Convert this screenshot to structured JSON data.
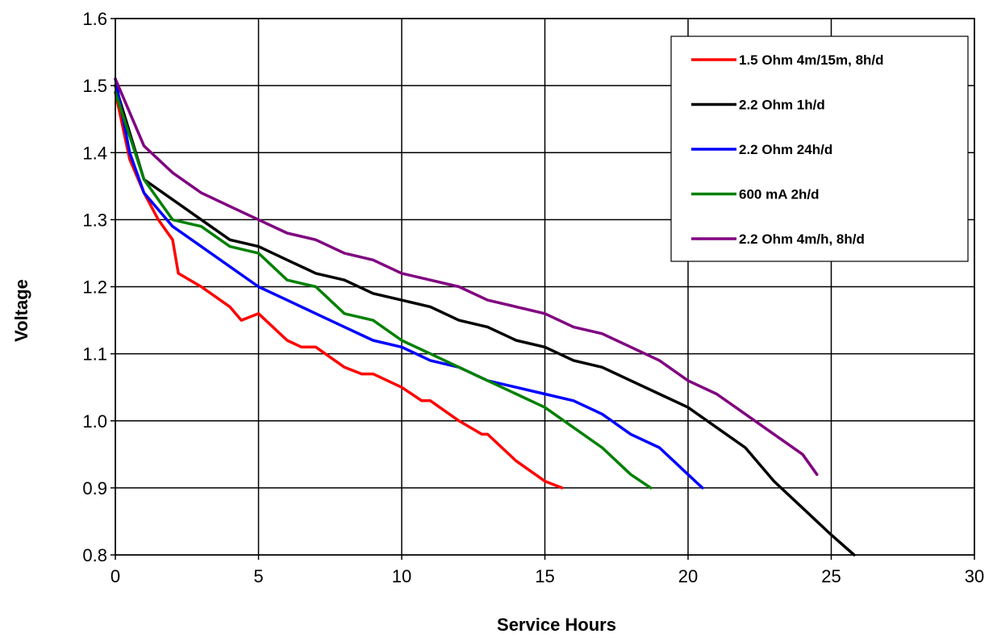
{
  "chart_data": {
    "type": "line",
    "title": "",
    "xlabel": "Service Hours",
    "ylabel": "Voltage",
    "xlim": [
      0,
      30
    ],
    "ylim": [
      0.8,
      1.6
    ],
    "x_ticks": [
      0,
      5,
      10,
      15,
      20,
      25,
      30
    ],
    "y_ticks": [
      0.8,
      0.9,
      1.0,
      1.1,
      1.2,
      1.3,
      1.4,
      1.5,
      1.6
    ],
    "x_tick_labels": [
      "0",
      "5",
      "10",
      "15",
      "20",
      "25",
      "30"
    ],
    "y_tick_labels": [
      "0.8",
      "0.9",
      "1.0",
      "1.1",
      "1.2",
      "1.3",
      "1.4",
      "1.5",
      "1.6"
    ],
    "grid": true,
    "legend_position": "top-right",
    "series": [
      {
        "name": "1.5 Ohm 4m/15m, 8h/d",
        "color": "#ff0000",
        "x": [
          0,
          0.5,
          1,
          1.5,
          2,
          2.2,
          3,
          4,
          4.4,
          5,
          6,
          6.5,
          7,
          8,
          8.6,
          9,
          10,
          10.7,
          11,
          12,
          12.8,
          13,
          14,
          15,
          15.6
        ],
        "y": [
          1.49,
          1.39,
          1.34,
          1.3,
          1.27,
          1.22,
          1.2,
          1.17,
          1.15,
          1.16,
          1.12,
          1.11,
          1.11,
          1.08,
          1.07,
          1.07,
          1.05,
          1.03,
          1.03,
          1.0,
          0.98,
          0.98,
          0.94,
          0.91,
          0.9
        ]
      },
      {
        "name": "2.2 Ohm 1h/d",
        "color": "#000000",
        "x": [
          0,
          1,
          2,
          3,
          4,
          5,
          6,
          7,
          8,
          9,
          10,
          11,
          12,
          13,
          14,
          15,
          16,
          17,
          18,
          19,
          20,
          21,
          22,
          23,
          24,
          25,
          25.8
        ],
        "y": [
          1.5,
          1.36,
          1.33,
          1.3,
          1.27,
          1.26,
          1.24,
          1.22,
          1.21,
          1.19,
          1.18,
          1.17,
          1.15,
          1.14,
          1.12,
          1.11,
          1.09,
          1.08,
          1.06,
          1.04,
          1.02,
          0.99,
          0.96,
          0.91,
          0.87,
          0.83,
          0.8
        ]
      },
      {
        "name": "2.2 Ohm 24h/d",
        "color": "#0000ff",
        "x": [
          0,
          0.5,
          1,
          2,
          3,
          4,
          5,
          6,
          7,
          8,
          9,
          10,
          11,
          12,
          13,
          14,
          15,
          16,
          17,
          18,
          19,
          20,
          20.5
        ],
        "y": [
          1.51,
          1.4,
          1.34,
          1.29,
          1.26,
          1.23,
          1.2,
          1.18,
          1.16,
          1.14,
          1.12,
          1.11,
          1.09,
          1.08,
          1.06,
          1.05,
          1.04,
          1.03,
          1.01,
          0.98,
          0.96,
          0.92,
          0.9
        ]
      },
      {
        "name": "600 mA 2h/d",
        "color": "#008000",
        "x": [
          0,
          1,
          2,
          3,
          4,
          5,
          6,
          7,
          8,
          9,
          10,
          11,
          12,
          13,
          14,
          15,
          16,
          17,
          18,
          18.7
        ],
        "y": [
          1.49,
          1.36,
          1.3,
          1.29,
          1.26,
          1.25,
          1.21,
          1.2,
          1.16,
          1.15,
          1.12,
          1.1,
          1.08,
          1.06,
          1.04,
          1.02,
          0.99,
          0.96,
          0.92,
          0.9
        ]
      },
      {
        "name": "2.2 Ohm 4m/h, 8h/d",
        "color": "#800080",
        "x": [
          0,
          1,
          2,
          3,
          4,
          5,
          6,
          7,
          8,
          9,
          10,
          11,
          12,
          13,
          14,
          15,
          16,
          17,
          18,
          19,
          20,
          21,
          22,
          23,
          24,
          24.5
        ],
        "y": [
          1.51,
          1.41,
          1.37,
          1.34,
          1.32,
          1.3,
          1.28,
          1.27,
          1.25,
          1.24,
          1.22,
          1.21,
          1.2,
          1.18,
          1.17,
          1.16,
          1.14,
          1.13,
          1.11,
          1.09,
          1.06,
          1.04,
          1.01,
          0.98,
          0.95,
          0.92
        ]
      }
    ]
  }
}
